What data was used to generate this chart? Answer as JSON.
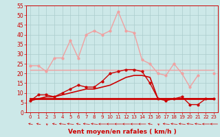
{
  "x": [
    0,
    1,
    2,
    3,
    4,
    5,
    6,
    7,
    8,
    9,
    10,
    11,
    12,
    13,
    14,
    15,
    16,
    17,
    18,
    19,
    20,
    21,
    22,
    23
  ],
  "series_gust_light": [
    24,
    24,
    21,
    28,
    28,
    37,
    28,
    40,
    42,
    40,
    42,
    52,
    42,
    41,
    27,
    25,
    20,
    19,
    25,
    20,
    13,
    19,
    null,
    20
  ],
  "series_avg_light": [
    22,
    22,
    22,
    22,
    22,
    22,
    22,
    22,
    22,
    22,
    22,
    22,
    22,
    22,
    22,
    22,
    22,
    22,
    22,
    22,
    22,
    22,
    22,
    22
  ],
  "series_gust_dark": [
    6,
    9,
    9,
    8,
    10,
    12,
    14,
    13,
    13,
    16,
    20,
    21,
    22,
    22,
    21,
    15,
    7,
    6,
    7,
    8,
    4,
    4,
    7,
    7
  ],
  "series_avg_dark": [
    6,
    7,
    8,
    8,
    9,
    10,
    11,
    12,
    12,
    13,
    14,
    16,
    18,
    19,
    19,
    18,
    7,
    7,
    7,
    7,
    7,
    7,
    7,
    7
  ],
  "series_flat": [
    7,
    7,
    7,
    7,
    7,
    7,
    7,
    7,
    7,
    7,
    7,
    7,
    7,
    7,
    7,
    7,
    7,
    7,
    7,
    7,
    7,
    7,
    7,
    7
  ],
  "ylim": [
    0,
    55
  ],
  "yticks": [
    0,
    5,
    10,
    15,
    20,
    25,
    30,
    35,
    40,
    45,
    50,
    55
  ],
  "xlim": [
    -0.5,
    23.5
  ],
  "bg_color": "#cce8e8",
  "grid_color": "#aacccc",
  "color_light_pink": "#f0a0a0",
  "color_dark_red": "#cc0000",
  "xlabel": "Vent moyen/en rafales ( km/h )",
  "xlabel_color": "#cc0000",
  "tick_color": "#cc0000"
}
